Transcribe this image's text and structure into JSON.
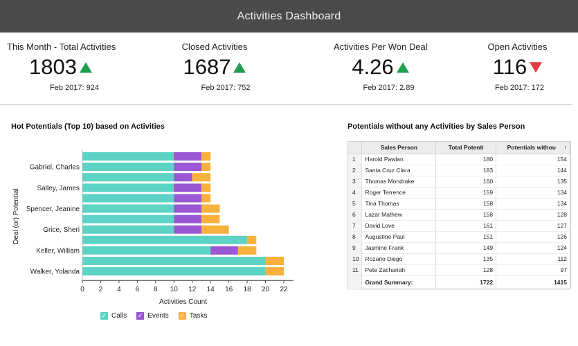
{
  "header": {
    "title": "Activities Dashboard"
  },
  "colors": {
    "calls": "#5cd3c4",
    "events": "#9a56d3",
    "tasks": "#f7b13c",
    "up": "#1fa050",
    "down": "#e23b3b"
  },
  "kpis": [
    {
      "title": "This Month - Total Activities",
      "value": "1803",
      "trend": "up",
      "compare": "Feb 2017: 924"
    },
    {
      "title": "Closed Activities",
      "value": "1687",
      "trend": "up",
      "compare": "Feb 2017: 752"
    },
    {
      "title": "Activities Per Won Deal",
      "value": "4.26",
      "trend": "up",
      "compare": "Feb 2017: 2.89"
    },
    {
      "title": "Open Activities",
      "value": "116",
      "trend": "down",
      "compare": "Feb 2017: 172"
    }
  ],
  "left_panel": {
    "title": "Hot Potentials (Top 10) based on Activities"
  },
  "right_panel": {
    "title": "Potentials without any Activities by Sales Person"
  },
  "chart_data": {
    "type": "bar",
    "orientation": "horizontal",
    "stacked": true,
    "xlabel": "Activities Count",
    "ylabel": "Deal (or) Potential",
    "xlim": [
      0,
      22
    ],
    "xticks": [
      0,
      2,
      4,
      6,
      8,
      10,
      12,
      14,
      16,
      18,
      20,
      22
    ],
    "categories": [
      "",
      "Gabriel, Charles",
      "",
      "Salley, James",
      "",
      "Spencer, Jeanine",
      "",
      "Grice, Sheri",
      "",
      "Keller, William",
      "",
      "Walker, Yolanda"
    ],
    "series": [
      {
        "name": "Calls",
        "values": [
          10,
          10,
          10,
          10,
          10,
          10,
          10,
          10,
          18,
          14,
          20,
          20
        ]
      },
      {
        "name": "Events",
        "values": [
          3,
          3,
          2,
          3,
          3,
          3,
          3,
          3,
          0,
          3,
          0,
          0
        ]
      },
      {
        "name": "Tasks",
        "values": [
          1,
          1,
          2,
          1,
          1,
          2,
          2,
          3,
          1,
          2,
          2,
          2
        ]
      }
    ],
    "legend_position": "bottom",
    "grid": false
  },
  "table": {
    "columns": [
      "Sales Person",
      "Total Potenti",
      "Potentials withou"
    ],
    "rows": [
      [
        "1",
        "Harold Pawlan",
        "180",
        "154"
      ],
      [
        "2",
        "Santa Cruz Clara",
        "183",
        "144"
      ],
      [
        "3",
        "Thomas Mondrake",
        "160",
        "135"
      ],
      [
        "4",
        "Roger Terrence",
        "159",
        "134"
      ],
      [
        "5",
        "Tina Thomas",
        "158",
        "134"
      ],
      [
        "6",
        "Lazar Mathew",
        "158",
        "128"
      ],
      [
        "7",
        "David Love",
        "161",
        "127"
      ],
      [
        "8",
        "Augustine Paul",
        "151",
        "126"
      ],
      [
        "9",
        "Jasmine Frank",
        "149",
        "124"
      ],
      [
        "10",
        "Rozario Diego",
        "135",
        "112"
      ],
      [
        "11",
        "Pete Zachariah",
        "128",
        "97"
      ]
    ],
    "summary": {
      "label": "Grand Summary:",
      "total": "1722",
      "without": "1415"
    }
  }
}
